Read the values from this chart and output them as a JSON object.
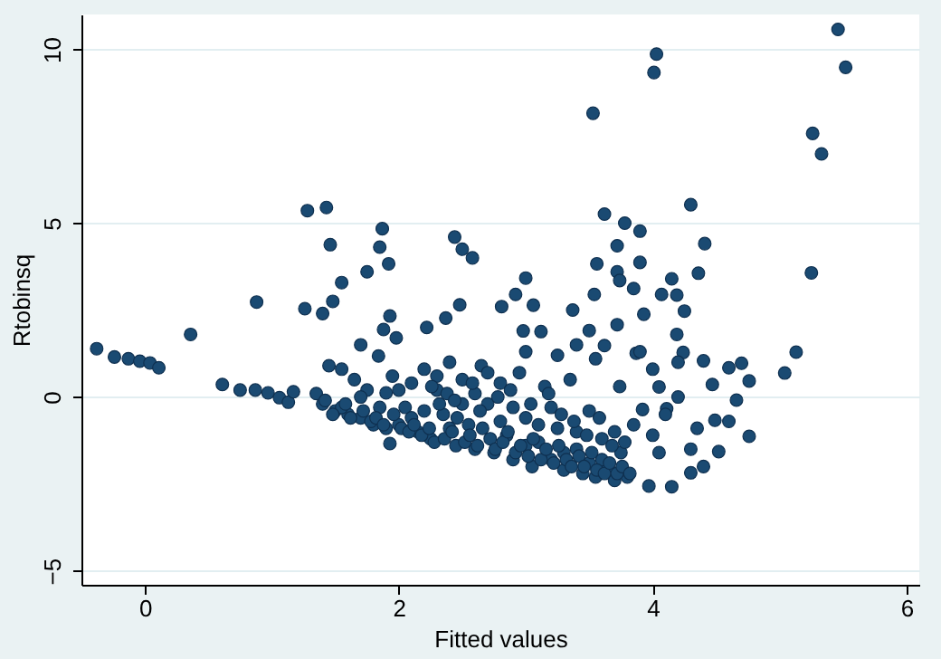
{
  "chart_data": {
    "type": "scatter",
    "xlabel": "Fitted values",
    "ylabel": "Rtobinsq",
    "xlim": [
      -0.5,
      6.1
    ],
    "ylim": [
      -5.4,
      11
    ],
    "xticks": [
      0,
      2,
      4,
      6
    ],
    "yticks": [
      -5,
      0,
      5,
      10
    ],
    "grid": "y",
    "marker": "circle",
    "series": [
      {
        "color": "#1a4a72",
        "x": [
          -0.38,
          -0.24,
          -0.13,
          -0.04,
          0.04,
          0.11,
          0.36,
          0.61,
          0.75,
          0.87,
          0.97,
          1.06,
          1.13,
          1.17,
          0.88,
          1.28,
          1.43,
          1.46,
          1.26,
          1.4,
          1.48,
          1.55,
          1.7,
          1.75,
          1.85,
          1.87,
          1.92,
          1.93,
          1.88,
          1.98,
          1.84,
          1.9,
          1.93,
          2.22,
          2.37,
          2.48,
          2.44,
          2.5,
          2.58,
          5.46,
          5.52,
          4.03,
          4.01,
          3.53,
          5.26,
          5.33,
          5.25,
          5.13,
          5.04,
          4.3,
          3.62,
          3.78,
          3.9,
          4.41,
          3.72,
          3.56,
          3.9,
          4.36,
          3.72,
          4.15,
          3.74,
          3.85,
          3.54,
          4.07,
          4.19,
          4.25,
          3.93,
          3.37,
          3.06,
          3.0,
          2.92,
          2.81,
          3.72,
          3.5,
          3.12,
          2.98,
          4.19,
          3.62,
          3.87,
          4.24,
          4.4,
          4.6,
          4.7,
          4.76,
          4.47,
          4.66,
          4.49,
          4.6,
          4.76,
          4.52,
          4.3,
          4.15,
          3.97,
          3.92,
          4.11,
          4.05,
          3.74,
          1.35,
          1.4,
          1.45,
          1.5,
          1.55,
          1.6,
          1.65,
          1.7,
          1.75,
          1.8,
          1.85,
          1.9,
          1.95,
          2.0,
          2.05,
          2.1,
          2.15,
          2.2,
          2.25,
          2.3,
          2.35,
          2.4,
          2.45,
          2.5,
          2.55,
          2.6,
          2.65,
          2.7,
          2.75,
          2.8,
          2.85,
          2.9,
          2.95,
          3.0,
          3.05,
          3.1,
          3.15,
          3.2,
          3.25,
          3.3,
          3.35,
          3.4,
          3.45,
          3.5,
          3.55,
          3.6,
          3.65,
          3.7,
          3.75,
          3.8,
          3.85,
          2.2,
          2.4,
          2.6,
          2.8,
          3.0,
          3.2,
          3.4,
          3.6,
          2.3,
          2.5,
          2.7,
          2.9,
          3.1,
          3.3,
          3.5,
          3.7,
          2.0,
          1.7,
          1.55,
          2.1,
          4.0,
          4.1,
          4.2,
          4.3,
          4.35,
          4.4,
          3.9,
          4.0,
          4.2,
          4.05,
          3.25,
          3.4,
          3.55,
          3.0,
          1.42,
          1.48,
          1.58,
          1.62,
          1.72,
          1.78,
          1.82,
          1.88,
          1.96,
          2.02,
          2.08,
          2.12,
          2.18,
          2.24,
          2.28,
          2.32,
          2.36,
          2.42,
          2.46,
          2.52,
          2.56,
          2.62,
          2.66,
          2.72,
          2.76,
          2.82,
          2.86,
          2.92,
          2.96,
          3.02,
          3.06,
          3.12,
          3.16,
          3.22,
          3.26,
          3.32,
          3.36,
          3.42,
          3.46,
          3.52,
          3.56,
          3.62,
          3.66,
          3.72,
          3.76,
          3.82,
          2.26,
          2.38,
          2.44,
          2.58,
          2.64,
          2.78,
          2.88,
          3.04,
          3.18,
          3.28,
          3.38,
          3.48,
          3.58,
          3.68,
          3.78
        ],
        "values": [
          1.39,
          1.15,
          1.1,
          1.03,
          0.98,
          0.84,
          1.8,
          0.36,
          0.2,
          0.2,
          0.12,
          -0.02,
          -0.15,
          0.15,
          2.73,
          5.36,
          5.45,
          4.38,
          2.54,
          2.4,
          2.75,
          3.29,
          1.5,
          3.6,
          4.31,
          4.84,
          3.83,
          2.33,
          1.94,
          1.7,
          1.18,
          0.12,
          -1.34,
          2.0,
          2.27,
          2.65,
          4.6,
          4.25,
          4.0,
          10.57,
          9.48,
          9.86,
          9.33,
          8.16,
          7.58,
          6.99,
          3.57,
          1.29,
          0.69,
          5.53,
          5.26,
          5.0,
          4.77,
          4.41,
          4.35,
          3.83,
          3.87,
          3.56,
          3.6,
          3.4,
          3.35,
          3.12,
          2.95,
          2.95,
          2.93,
          2.47,
          2.38,
          2.5,
          2.64,
          3.42,
          2.95,
          2.6,
          2.08,
          1.91,
          1.88,
          1.9,
          1.8,
          1.48,
          1.26,
          1.28,
          1.04,
          0.84,
          0.97,
          0.46,
          0.36,
          -0.09,
          -0.67,
          -0.7,
          -1.13,
          -1.57,
          -2.18,
          -2.58,
          -2.56,
          -0.36,
          -0.34,
          0.29,
          0.3,
          0.1,
          -0.2,
          0.9,
          -0.4,
          0.8,
          -0.5,
          0.5,
          -0.6,
          0.2,
          -0.8,
          -0.3,
          -0.9,
          0.6,
          -0.8,
          -0.3,
          0.4,
          -1.0,
          0.8,
          -1.2,
          0.2,
          -0.5,
          1.0,
          -1.4,
          0.5,
          -0.8,
          -1.5,
          0.9,
          -0.2,
          -1.6,
          0.4,
          -1.1,
          -1.8,
          0.7,
          -0.6,
          -2.0,
          -1.3,
          0.3,
          -1.8,
          -0.9,
          -2.1,
          0.5,
          -1.5,
          -2.2,
          -0.4,
          -2.3,
          -1.2,
          -2.0,
          -2.4,
          -1.6,
          -2.3,
          -0.8,
          -0.4,
          -0.9,
          0.1,
          -0.7,
          -1.4,
          -0.3,
          -1.0,
          -1.8,
          0.6,
          -0.2,
          0.7,
          -0.3,
          -0.8,
          -1.6,
          -1.9,
          -1.0,
          0.2,
          0.0,
          -0.3,
          -0.6,
          -1.1,
          -0.5,
          0.0,
          -1.5,
          -0.9,
          -2.0,
          1.3,
          0.8,
          1.0,
          -1.6,
          1.2,
          1.5,
          1.1,
          1.3,
          -0.1,
          -0.5,
          -0.2,
          -0.6,
          -0.4,
          -0.7,
          -0.6,
          -0.8,
          -0.5,
          -0.9,
          -1.0,
          -0.8,
          -1.1,
          -0.9,
          -1.3,
          -0.2,
          -1.2,
          -1.0,
          -0.6,
          -1.3,
          -1.1,
          -1.4,
          -0.9,
          -1.2,
          -1.5,
          -1.3,
          -1.0,
          -1.6,
          -1.4,
          -1.7,
          -1.2,
          -1.8,
          -1.5,
          -1.9,
          -1.4,
          -1.8,
          -2.0,
          -1.7,
          -2.0,
          -1.6,
          -2.1,
          -2.2,
          -1.9,
          -2.2,
          -2.0,
          -2.2,
          0.3,
          0.1,
          -0.1,
          0.4,
          -0.4,
          0.0,
          0.2,
          -0.2,
          0.1,
          -0.5,
          -0.7,
          -1.1,
          -0.6,
          -1.4,
          -1.3
        ]
      }
    ]
  }
}
